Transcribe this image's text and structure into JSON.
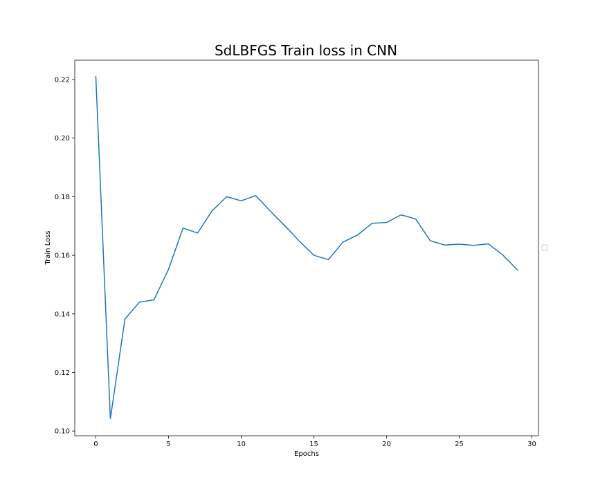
{
  "chart_data": {
    "type": "line",
    "title": "SdLBFGS Train loss in CNN",
    "xlabel": "Epochs",
    "ylabel": "Train Loss",
    "xlim": [
      -1.45,
      30.45
    ],
    "ylim": [
      0.0984,
      0.2266
    ],
    "xticks": [
      0,
      5,
      10,
      15,
      20,
      25,
      30
    ],
    "xtick_labels": [
      "0",
      "5",
      "10",
      "15",
      "20",
      "25",
      "30"
    ],
    "yticks": [
      0.1,
      0.12,
      0.14,
      0.16,
      0.18,
      0.2,
      0.22
    ],
    "ytick_labels": [
      "0.10",
      "0.12",
      "0.14",
      "0.16",
      "0.18",
      "0.20",
      "0.22"
    ],
    "grid": false,
    "legend": {
      "placement": "center-right-outside",
      "entries": []
    },
    "series": [
      {
        "color": "#1f77b4",
        "x": [
          0,
          1,
          2,
          3,
          4,
          5,
          6,
          7,
          8,
          9,
          10,
          11,
          12,
          13,
          14,
          15,
          16,
          17,
          18,
          19,
          20,
          21,
          22,
          23,
          24,
          25,
          26,
          27,
          28,
          29
        ],
        "values": [
          0.221,
          0.1042,
          0.1382,
          0.144,
          0.1448,
          0.1552,
          0.1693,
          0.1676,
          0.1752,
          0.18,
          0.1786,
          0.1804,
          0.1751,
          0.1701,
          0.1648,
          0.16,
          0.1585,
          0.1645,
          0.1669,
          0.1709,
          0.1712,
          0.1738,
          0.1724,
          0.165,
          0.1635,
          0.1638,
          0.1634,
          0.1639,
          0.1601,
          0.155
        ]
      }
    ]
  }
}
